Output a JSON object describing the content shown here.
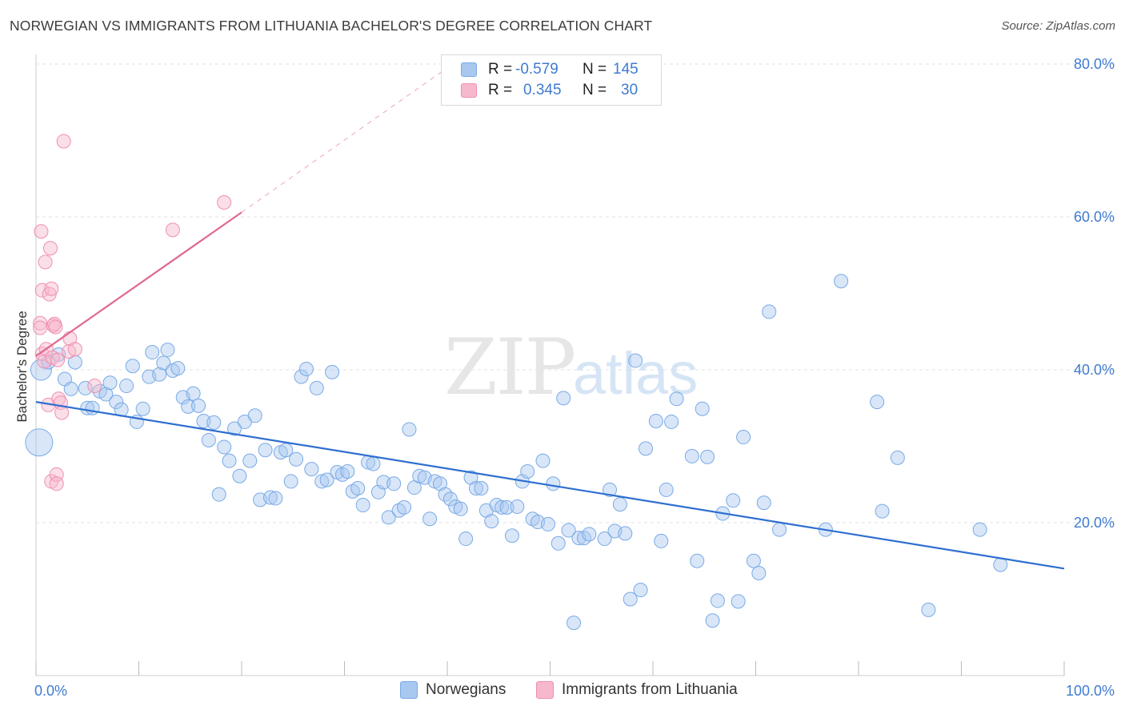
{
  "title": "NORWEGIAN VS IMMIGRANTS FROM LITHUANIA BACHELOR'S DEGREE CORRELATION CHART",
  "source": "Source: ZipAtlas.com",
  "watermark": {
    "zip": "ZIP",
    "atlas": "atlas"
  },
  "legend": {
    "rows": [
      {
        "r_label": "R =",
        "r_value": "-0.579",
        "n_label": "N =",
        "n_value": "145",
        "color": "#a8c8f0",
        "stroke": "#7aaae6"
      },
      {
        "r_label": "R =",
        "r_value": "0.345",
        "n_label": "N =",
        "n_value": "30",
        "color": "#f6b8cc",
        "stroke": "#ef8fb0"
      }
    ]
  },
  "bottom_legend": [
    {
      "label": "Norwegians",
      "color": "#a8c8f0",
      "stroke": "#7aaae6"
    },
    {
      "label": "Immigrants from Lithuania",
      "color": "#f6b8cc",
      "stroke": "#ef8fb0"
    }
  ],
  "chart_data": {
    "type": "scatter",
    "title": "NORWEGIAN VS IMMIGRANTS FROM LITHUANIA BACHELOR'S DEGREE CORRELATION CHART",
    "xlabel": "",
    "ylabel": "Bachelor's Degree",
    "xlim": [
      0,
      100
    ],
    "ylim": [
      0,
      82
    ],
    "x_tick_labels": [
      "0.0%",
      "100.0%"
    ],
    "y_ticks": [
      20,
      40,
      60,
      80
    ],
    "y_tick_labels": [
      "20.0%",
      "40.0%",
      "60.0%",
      "80.0%"
    ],
    "grid": true,
    "legend_position": "top-center",
    "series": [
      {
        "name": "Norwegians",
        "color": "#7aaae6",
        "fill": "#a8c8f0",
        "trend": {
          "x": [
            0,
            100
          ],
          "y": [
            35.8,
            14.0
          ],
          "color": "#2e6fd0"
        },
        "points": [
          [
            0.3,
            30.5,
            3
          ],
          [
            0.5,
            40.0,
            2
          ],
          [
            1.2,
            41.0,
            1
          ],
          [
            2.2,
            42.0,
            1
          ],
          [
            3.8,
            41.0,
            1
          ],
          [
            2.8,
            38.8,
            1
          ],
          [
            3.4,
            37.5,
            1
          ],
          [
            4.8,
            37.6,
            1
          ],
          [
            5.0,
            35.0,
            1
          ],
          [
            5.5,
            35.0,
            1
          ],
          [
            6.2,
            37.2,
            1
          ],
          [
            6.8,
            36.8,
            1
          ],
          [
            7.2,
            38.3,
            1
          ],
          [
            7.8,
            35.8,
            1
          ],
          [
            8.3,
            34.8,
            1
          ],
          [
            8.8,
            37.9,
            1
          ],
          [
            9.4,
            40.5,
            1
          ],
          [
            9.8,
            33.2,
            1
          ],
          [
            10.4,
            34.9,
            1
          ],
          [
            11.0,
            39.1,
            1
          ],
          [
            11.3,
            42.3,
            1
          ],
          [
            12.0,
            39.4,
            1
          ],
          [
            12.4,
            40.9,
            1
          ],
          [
            12.8,
            42.6,
            1
          ],
          [
            13.3,
            39.9,
            1
          ],
          [
            13.8,
            40.2,
            1
          ],
          [
            14.3,
            36.4,
            1
          ],
          [
            14.8,
            35.2,
            1
          ],
          [
            15.3,
            36.9,
            1
          ],
          [
            15.8,
            35.3,
            1
          ],
          [
            16.3,
            33.3,
            1
          ],
          [
            16.8,
            30.8,
            1
          ],
          [
            17.3,
            33.1,
            1
          ],
          [
            17.8,
            23.7,
            1
          ],
          [
            18.3,
            29.9,
            1
          ],
          [
            18.8,
            28.1,
            1
          ],
          [
            19.3,
            32.3,
            1
          ],
          [
            19.8,
            26.1,
            1
          ],
          [
            20.3,
            33.2,
            1
          ],
          [
            20.8,
            28.1,
            1
          ],
          [
            21.3,
            34.0,
            1
          ],
          [
            21.8,
            23.0,
            1
          ],
          [
            22.3,
            29.5,
            1
          ],
          [
            22.8,
            23.3,
            1
          ],
          [
            23.3,
            23.2,
            1
          ],
          [
            23.8,
            29.2,
            1
          ],
          [
            24.3,
            29.5,
            1
          ],
          [
            24.8,
            25.4,
            1
          ],
          [
            25.3,
            28.3,
            1
          ],
          [
            25.8,
            39.1,
            1
          ],
          [
            26.3,
            40.1,
            1
          ],
          [
            26.8,
            27.0,
            1
          ],
          [
            27.3,
            37.6,
            1
          ],
          [
            27.8,
            25.4,
            1
          ],
          [
            28.3,
            25.6,
            1
          ],
          [
            28.8,
            39.7,
            1
          ],
          [
            29.3,
            26.6,
            1
          ],
          [
            29.8,
            26.3,
            1
          ],
          [
            30.3,
            26.7,
            1
          ],
          [
            30.8,
            24.1,
            1
          ],
          [
            31.3,
            24.5,
            1
          ],
          [
            31.8,
            22.3,
            1
          ],
          [
            32.3,
            27.9,
            1
          ],
          [
            32.8,
            27.7,
            1
          ],
          [
            33.3,
            24.0,
            1
          ],
          [
            33.8,
            25.3,
            1
          ],
          [
            34.3,
            20.7,
            1
          ],
          [
            34.8,
            25.1,
            1
          ],
          [
            35.3,
            21.6,
            1
          ],
          [
            35.8,
            22.0,
            1
          ],
          [
            36.3,
            32.2,
            1
          ],
          [
            36.8,
            24.6,
            1
          ],
          [
            37.3,
            26.1,
            1
          ],
          [
            37.8,
            25.9,
            1
          ],
          [
            38.3,
            20.5,
            1
          ],
          [
            38.8,
            25.4,
            1
          ],
          [
            39.3,
            25.1,
            1
          ],
          [
            39.8,
            23.7,
            1
          ],
          [
            40.3,
            23.1,
            1
          ],
          [
            40.8,
            22.1,
            1
          ],
          [
            41.3,
            21.8,
            1
          ],
          [
            41.8,
            17.9,
            1
          ],
          [
            42.3,
            25.9,
            1
          ],
          [
            42.8,
            24.5,
            1
          ],
          [
            43.3,
            24.5,
            1
          ],
          [
            43.8,
            21.6,
            1
          ],
          [
            44.3,
            20.2,
            1
          ],
          [
            44.8,
            22.3,
            1
          ],
          [
            45.3,
            22.0,
            1
          ],
          [
            45.8,
            22.0,
            1
          ],
          [
            46.3,
            18.3,
            1
          ],
          [
            46.8,
            22.1,
            1
          ],
          [
            47.3,
            25.4,
            1
          ],
          [
            47.8,
            26.7,
            1
          ],
          [
            48.3,
            20.5,
            1
          ],
          [
            48.8,
            20.1,
            1
          ],
          [
            49.3,
            28.1,
            1
          ],
          [
            49.8,
            19.8,
            1
          ],
          [
            50.3,
            25.1,
            1
          ],
          [
            50.8,
            17.3,
            1
          ],
          [
            51.3,
            36.3,
            1
          ],
          [
            51.8,
            19.0,
            1
          ],
          [
            52.3,
            6.9,
            1
          ],
          [
            52.8,
            18.0,
            1
          ],
          [
            53.3,
            18.0,
            1
          ],
          [
            53.8,
            18.5,
            1
          ],
          [
            55.3,
            17.9,
            1
          ],
          [
            55.8,
            24.3,
            1
          ],
          [
            56.3,
            18.9,
            1
          ],
          [
            56.8,
            22.4,
            1
          ],
          [
            57.3,
            18.6,
            1
          ],
          [
            57.8,
            10.0,
            1
          ],
          [
            58.3,
            41.2,
            1
          ],
          [
            58.8,
            11.2,
            1
          ],
          [
            59.3,
            29.7,
            1
          ],
          [
            60.3,
            33.3,
            1
          ],
          [
            60.8,
            17.6,
            1
          ],
          [
            61.3,
            24.3,
            1
          ],
          [
            61.8,
            33.2,
            1
          ],
          [
            62.3,
            36.2,
            1
          ],
          [
            63.8,
            28.7,
            1
          ],
          [
            64.3,
            15.0,
            1
          ],
          [
            64.8,
            34.9,
            1
          ],
          [
            65.3,
            28.6,
            1
          ],
          [
            65.8,
            7.2,
            1
          ],
          [
            66.3,
            9.8,
            1
          ],
          [
            66.8,
            21.2,
            1
          ],
          [
            67.8,
            22.9,
            1
          ],
          [
            68.3,
            9.7,
            1
          ],
          [
            68.8,
            31.2,
            1
          ],
          [
            69.8,
            15.0,
            1
          ],
          [
            70.3,
            13.4,
            1
          ],
          [
            70.8,
            22.6,
            1
          ],
          [
            71.3,
            47.6,
            1
          ],
          [
            72.3,
            19.1,
            1
          ],
          [
            76.8,
            19.1,
            1
          ],
          [
            78.3,
            51.6,
            1
          ],
          [
            81.8,
            35.8,
            1
          ],
          [
            82.3,
            21.5,
            1
          ],
          [
            83.8,
            28.5,
            1
          ],
          [
            86.8,
            8.6,
            1
          ],
          [
            91.8,
            19.1,
            1
          ],
          [
            93.8,
            14.5,
            1
          ]
        ]
      },
      {
        "name": "Immigrants from Lithuania",
        "color": "#ef8fb0",
        "fill": "#f6b8cc",
        "trend": {
          "x": [
            0,
            20
          ],
          "y": [
            41.8,
            60.6
          ],
          "dash_to": [
            40,
            79.5
          ],
          "color": "#e0688f"
        },
        "points": [
          [
            0.4,
            46.1,
            1
          ],
          [
            0.4,
            45.5,
            1
          ],
          [
            0.5,
            58.1,
            1
          ],
          [
            0.6,
            50.4,
            1
          ],
          [
            0.6,
            42.1,
            1
          ],
          [
            0.8,
            41.1,
            1
          ],
          [
            0.9,
            54.1,
            1
          ],
          [
            1.0,
            42.7,
            1
          ],
          [
            1.2,
            35.4,
            1
          ],
          [
            1.3,
            49.9,
            1
          ],
          [
            1.4,
            55.9,
            1
          ],
          [
            1.5,
            50.6,
            1
          ],
          [
            1.5,
            25.4,
            1
          ],
          [
            1.6,
            41.6,
            1
          ],
          [
            1.7,
            45.8,
            1
          ],
          [
            1.8,
            46.0,
            1
          ],
          [
            1.9,
            45.6,
            1
          ],
          [
            2.0,
            26.3,
            1
          ],
          [
            2.0,
            25.1,
            1
          ],
          [
            2.1,
            41.3,
            1
          ],
          [
            2.2,
            36.2,
            1
          ],
          [
            2.4,
            35.7,
            1
          ],
          [
            2.5,
            34.4,
            1
          ],
          [
            2.7,
            69.9,
            1
          ],
          [
            3.2,
            42.4,
            1
          ],
          [
            3.3,
            44.1,
            1
          ],
          [
            3.8,
            42.7,
            1
          ],
          [
            5.7,
            37.9,
            1
          ],
          [
            13.3,
            58.3,
            1
          ],
          [
            18.3,
            61.9,
            1
          ]
        ]
      }
    ]
  }
}
